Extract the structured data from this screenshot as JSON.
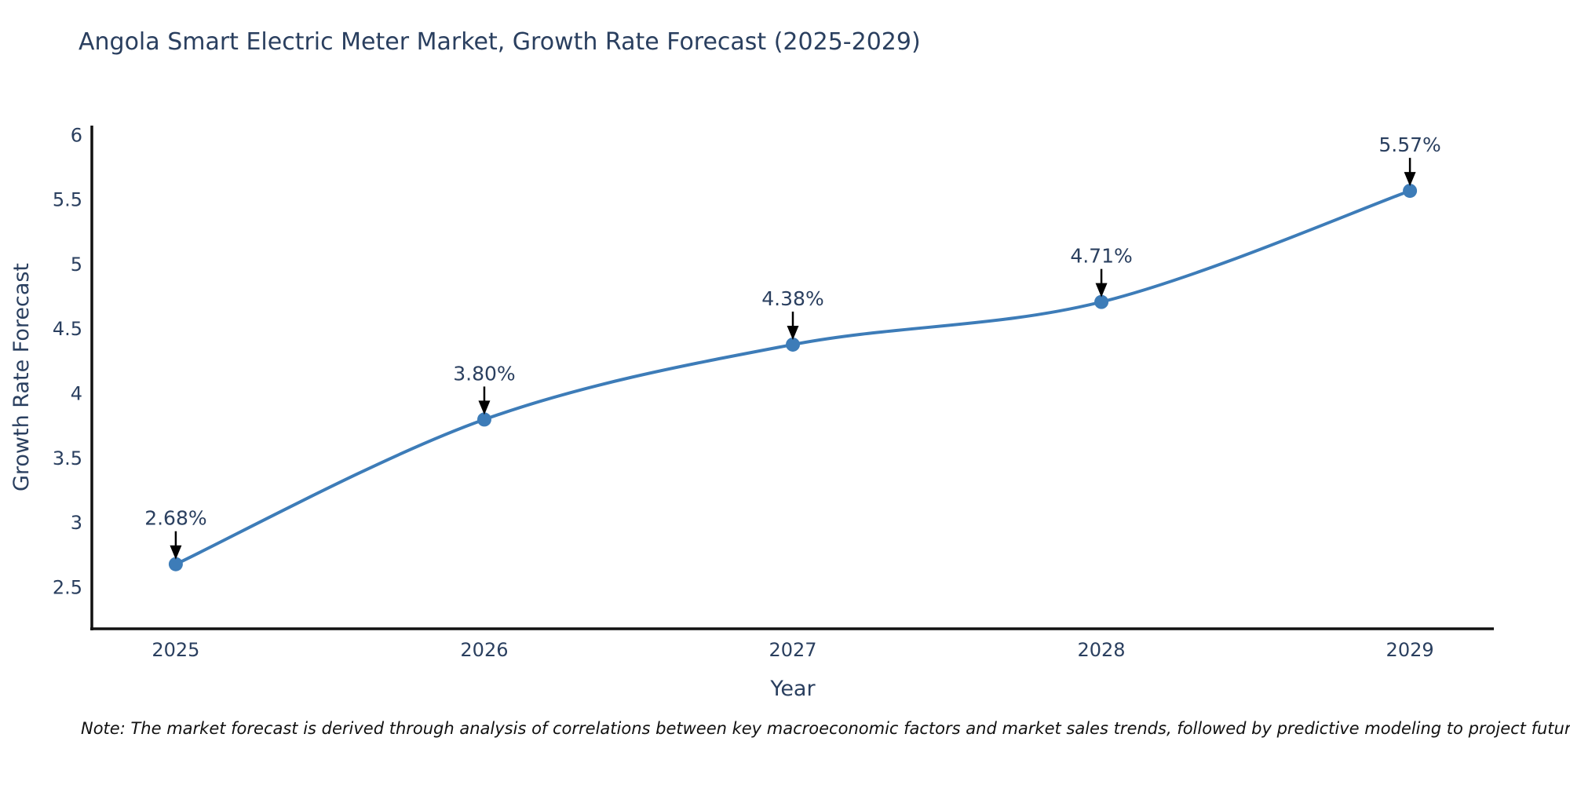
{
  "page": {
    "background": "#ffffff"
  },
  "chart_data": {
    "type": "line",
    "title": "Angola Smart Electric Meter Market, Growth Rate Forecast (2025-2029)",
    "xlabel": "Year",
    "ylabel": "Growth Rate Forecast",
    "categories": [
      "2025",
      "2026",
      "2027",
      "2028",
      "2029"
    ],
    "series": [
      {
        "name": "Growth Rate Forecast",
        "values": [
          2.68,
          3.8,
          4.38,
          4.71,
          5.57
        ]
      }
    ],
    "point_labels": [
      "2.68%",
      "3.80%",
      "4.38%",
      "4.71%",
      "5.57%"
    ],
    "ytick_values": [
      2.5,
      3,
      3.5,
      4,
      4.5,
      5,
      5.5,
      6
    ],
    "ytick_labels": [
      "2.5",
      "3",
      "3.5",
      "4",
      "4.5",
      "5",
      "5.5",
      "6"
    ],
    "ylim": [
      2.18,
      6.075
    ],
    "grid": false,
    "legend_position": "none",
    "line_shape": "spline",
    "colors": {
      "line": "#3d7cb8",
      "marker": "#3d7cb8",
      "axis_line": "#111111",
      "text": "#2a3f5f",
      "annotation_arrow": "#000000"
    }
  },
  "note": {
    "text": "Note: The market forecast is derived through analysis of correlations between key macroeconomic factors and market sales trends, followed by predictive modeling to project future sales"
  }
}
